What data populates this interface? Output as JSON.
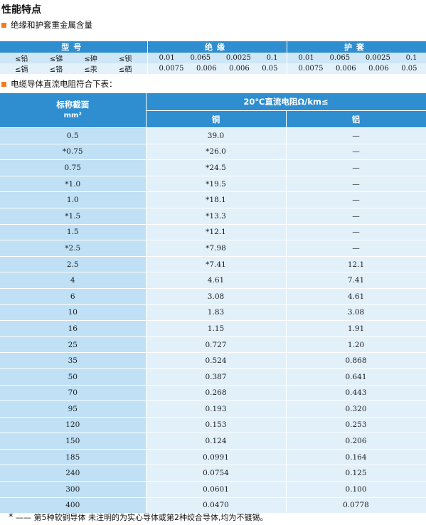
{
  "title": "性能特点",
  "section1": {
    "heading": "绝缘和护套重金属含量"
  },
  "metals": {
    "header": {
      "model": "型号",
      "insulation": "绝缘",
      "sheath": "护套"
    },
    "rows": [
      {
        "elements": [
          "≤铅",
          "≤锑",
          "≤砷",
          "≤钡"
        ],
        "insulation": [
          "0.01",
          "0.065",
          "0.0025",
          "0.1"
        ],
        "sheath": [
          "0.01",
          "0.065",
          "0.0025",
          "0.1"
        ]
      },
      {
        "elements": [
          "≤镉",
          "≤铬",
          "≤汞",
          "≤硒"
        ],
        "insulation": [
          "0.0075",
          "0.006",
          "0.006",
          "0.05"
        ],
        "sheath": [
          "0.0075",
          "0.006",
          "0.006",
          "0.05"
        ]
      }
    ]
  },
  "section2": {
    "heading": "电缆导体直流电阻符合下表："
  },
  "resistance": {
    "header": {
      "section": "标称截面",
      "unit": "mm²",
      "group": "20℃直流电阻Ω/km≤",
      "copper": "铜",
      "aluminum": "铝"
    },
    "rows": [
      [
        "0.5",
        "39.0",
        "—"
      ],
      [
        "*0.75",
        "*26.0",
        "—"
      ],
      [
        "0.75",
        "*24.5",
        "—"
      ],
      [
        "*1.0",
        "*19.5",
        "—"
      ],
      [
        "1.0",
        "*18.1",
        "—"
      ],
      [
        "*1.5",
        "*13.3",
        "—"
      ],
      [
        "1.5",
        "*12.1",
        "—"
      ],
      [
        "*2.5",
        "*7.98",
        "—"
      ],
      [
        "2.5",
        "*7.41",
        "12.1"
      ],
      [
        "4",
        "4.61",
        "7.41"
      ],
      [
        "6",
        "3.08",
        "4.61"
      ],
      [
        "10",
        "1.83",
        "3.08"
      ],
      [
        "16",
        "1.15",
        "1.91"
      ],
      [
        "25",
        "0.727",
        "1.20"
      ],
      [
        "35",
        "0.524",
        "0.868"
      ],
      [
        "50",
        "0.387",
        "0.641"
      ],
      [
        "70",
        "0.268",
        "0.443"
      ],
      [
        "95",
        "0.193",
        "0.320"
      ],
      [
        "120",
        "0.153",
        "0.253"
      ],
      [
        "150",
        "0.124",
        "0.206"
      ],
      [
        "185",
        "0.0991",
        "0.164"
      ],
      [
        "240",
        "0.0754",
        "0.125"
      ],
      [
        "300",
        "0.0601",
        "0.100"
      ],
      [
        "400",
        "0.0470",
        "0.0778"
      ]
    ]
  },
  "footnote": {
    "marker": "*",
    "text": "—— 第5种软铜导体   未注明的为实心导体或第2种绞合导体,均为不镀锡。"
  },
  "colors": {
    "header_blue": "#2f8ecf",
    "accent_orange": "#f07c1e",
    "cell_light": "#e2f0fa",
    "cell_mid": "#bfe0f5"
  }
}
